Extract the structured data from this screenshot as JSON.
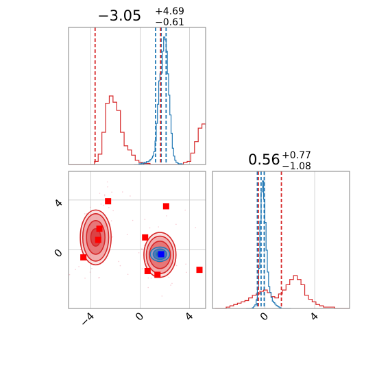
{
  "chart_data": {
    "type": "corner",
    "colors": {
      "series_a": "#1f77b4",
      "series_b": "#d62728"
    },
    "grid": true,
    "parameters": [
      {
        "title_value": "−3.05",
        "title_plus": "+4.69",
        "title_minus": "−0.61",
        "range": [
          -5.8,
          5.3
        ],
        "ticks": [
          -4,
          0,
          4
        ],
        "tick_labels": [
          "−4",
          "0",
          "4"
        ]
      },
      {
        "title_value": "0.56",
        "title_plus": "+0.77",
        "title_minus": "−1.08",
        "range": [
          -4.2,
          6.8
        ],
        "ticks": [
          0,
          4
        ],
        "tick_labels": [
          "0",
          "4"
        ]
      }
    ],
    "panel_2d": {
      "ylim": [
        -4.7,
        6.3
      ],
      "yticks": [
        0,
        4
      ],
      "ytick_labels": [
        "0",
        "4"
      ],
      "red_contours": [
        {
          "cx": -3.6,
          "cy": 1.0,
          "rx": [
            0.4,
            0.75,
            1.05,
            1.25
          ],
          "ry": [
            0.7,
            1.35,
            1.9,
            2.2
          ]
        },
        {
          "cx": 1.6,
          "cy": -0.4,
          "rx": [
            0.5,
            0.85,
            1.1,
            1.3
          ],
          "ry": [
            0.55,
            1.1,
            1.5,
            1.8
          ]
        }
      ],
      "blue_contour": {
        "cx": 1.6,
        "cy": -0.35,
        "rx": [
          0.3,
          0.55,
          0.78
        ],
        "ry": [
          0.22,
          0.42,
          0.58
        ]
      },
      "scatter_points": [
        {
          "x": -2.6,
          "y": 3.9
        },
        {
          "x": 2.1,
          "y": 3.5
        },
        {
          "x": -3.3,
          "y": 1.7
        },
        {
          "x": -3.4,
          "y": 0.8
        },
        {
          "x": 0.4,
          "y": 1.0
        },
        {
          "x": -4.6,
          "y": -0.6
        },
        {
          "x": 0.6,
          "y": -1.7
        },
        {
          "x": 1.4,
          "y": -2.0
        },
        {
          "x": 4.8,
          "y": -1.6
        }
      ],
      "truth_point": {
        "x": 1.7,
        "y": -0.35
      }
    },
    "hist_1": {
      "red_bins": {
        "edges_start": -5.8,
        "bin_width": 0.3,
        "counts": [
          0,
          0,
          0,
          0,
          0,
          0,
          0,
          3,
          10,
          31,
          59,
          66,
          60,
          52,
          31,
          18,
          14,
          9,
          4,
          2,
          1,
          1,
          0,
          0,
          0,
          0,
          0,
          0,
          0,
          0,
          0,
          2,
          3,
          11,
          22,
          35,
          39,
          35,
          29,
          22,
          11,
          5,
          2,
          1,
          0,
          0,
          0,
          0,
          0
        ]
      },
      "blue_bins": {
        "edges_start": -0.5,
        "bin_width": 0.1,
        "counts": [
          0,
          0,
          0,
          0,
          1,
          1,
          2,
          1,
          3,
          2,
          4,
          4,
          5,
          7,
          9,
          12,
          18,
          33,
          58,
          85,
          118,
          128,
          129,
          160,
          180,
          176,
          160,
          128,
          98,
          70,
          44,
          23,
          12,
          6,
          3,
          2,
          1,
          1,
          1,
          0
        ]
      },
      "red_quantiles": [
        -3.65,
        1.65
      ],
      "blue_quantiles": [
        1.25,
        1.7,
        2.1
      ]
    },
    "hist_2": {
      "red_bins": {
        "edges_start": -4.0,
        "bin_width": 0.3,
        "counts": [
          0,
          0,
          0,
          1,
          2,
          3,
          4,
          5,
          6,
          8,
          10,
          11,
          13,
          14,
          12,
          9,
          8,
          11,
          14,
          18,
          22,
          25,
          22,
          18,
          10,
          7,
          5,
          3,
          2,
          1,
          1,
          1,
          0,
          0,
          0,
          0
        ]
      },
      "blue_bins": {
        "edges_start": -1.5,
        "bin_width": 0.1,
        "counts": [
          0,
          0,
          0,
          0,
          0,
          1,
          3,
          5,
          12,
          28,
          55,
          120,
          160,
          175,
          150,
          118,
          80,
          50,
          30,
          22,
          15,
          10,
          8,
          6,
          4,
          3,
          2,
          1,
          0,
          0,
          0,
          0,
          0,
          0,
          0,
          0
        ]
      },
      "red_quantiles": [
        -0.52,
        1.33
      ],
      "blue_quantiles": [
        -0.6,
        -0.3,
        -0.05
      ]
    }
  }
}
